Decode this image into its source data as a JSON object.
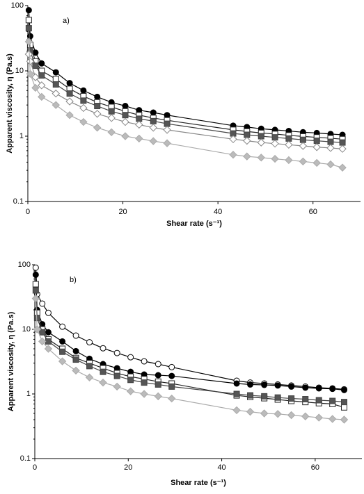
{
  "chart_data": [
    {
      "type": "line",
      "annotation": "a)",
      "xlabel": "Shear rate (s⁻¹)",
      "ylabel": "Apparent viscosity, η (Pa.s)",
      "log_y": true,
      "xlim": [
        0,
        70
      ],
      "ylim": [
        0.1,
        100
      ],
      "xticks": [
        0,
        20,
        40,
        60
      ],
      "yticks": [
        0.1,
        1,
        10,
        100
      ],
      "x": [
        0.2,
        0.5,
        1.6,
        2.9,
        5.9,
        8.8,
        11.7,
        14.6,
        17.6,
        20.5,
        23.4,
        26.4,
        29.3,
        43.2,
        46.1,
        49.1,
        52,
        54.9,
        57.9,
        60.8,
        63.7,
        66.2
      ],
      "series": [
        {
          "color": "#000000",
          "marker": "circle",
          "marker_fill": "#000000",
          "values": [
            85,
            34,
            19,
            13,
            9.5,
            6.5,
            5,
            4,
            3.3,
            2.9,
            2.5,
            2.3,
            2.1,
            1.45,
            1.38,
            1.3,
            1.25,
            1.2,
            1.15,
            1.12,
            1.08,
            1.05
          ]
        },
        {
          "color": "#222222",
          "marker": "square",
          "marker_fill": "#ffffff",
          "values": [
            60,
            25,
            14,
            10,
            7.5,
            5.3,
            4.1,
            3.3,
            2.8,
            2.4,
            2.1,
            1.9,
            1.75,
            1.25,
            1.18,
            1.12,
            1.08,
            1.03,
            0.99,
            0.96,
            0.93,
            0.9
          ]
        },
        {
          "color": "#444444",
          "marker": "square",
          "marker_fill": "#555555",
          "values": [
            45,
            20,
            12,
            8.5,
            6.2,
            4.5,
            3.5,
            2.9,
            2.4,
            2.1,
            1.85,
            1.7,
            1.55,
            1.1,
            1.05,
            1.0,
            0.96,
            0.92,
            0.88,
            0.85,
            0.82,
            0.8
          ]
        },
        {
          "color": "#888888",
          "marker": "diamond",
          "marker_fill": "#ffffff",
          "values": [
            18,
            14,
            8,
            6,
            4.5,
            3.4,
            2.7,
            2.2,
            1.9,
            1.65,
            1.5,
            1.35,
            1.25,
            0.9,
            0.85,
            0.8,
            0.77,
            0.74,
            0.71,
            0.68,
            0.66,
            0.64
          ]
        },
        {
          "color": "#aaaaaa",
          "marker": "diamond",
          "marker_fill": "#bbbbbb",
          "values": [
            28,
            9,
            5.5,
            4,
            3,
            2.1,
            1.65,
            1.35,
            1.15,
            1.0,
            0.92,
            0.84,
            0.78,
            0.52,
            0.49,
            0.47,
            0.45,
            0.43,
            0.41,
            0.39,
            0.37,
            0.33
          ]
        }
      ]
    },
    {
      "type": "line",
      "annotation": "b)",
      "xlabel": "Shear rate (s⁻¹)",
      "ylabel": "Apparent viscosity, η (Pa.s)",
      "log_y": true,
      "xlim": [
        0,
        70
      ],
      "ylim": [
        0.1,
        100
      ],
      "xticks": [
        0,
        20,
        40,
        60
      ],
      "yticks": [
        0.1,
        1,
        10,
        100
      ],
      "x": [
        0.2,
        0.5,
        1.6,
        2.9,
        5.9,
        8.8,
        11.7,
        14.6,
        17.6,
        20.5,
        23.4,
        26.4,
        29.3,
        43.2,
        46.1,
        49.1,
        52,
        54.9,
        57.9,
        60.8,
        63.7,
        66.2
      ],
      "series": [
        {
          "color": "#000000",
          "marker": "circle",
          "marker_fill": "#ffffff",
          "values": [
            90,
            35,
            25,
            18,
            11,
            8,
            6.3,
            5.1,
            4.3,
            3.7,
            3.2,
            2.9,
            2.6,
            1.6,
            1.5,
            1.45,
            1.4,
            1.35,
            1.3,
            1.25,
            1.22,
            1.18
          ]
        },
        {
          "color": "#000000",
          "marker": "circle",
          "marker_fill": "#000000",
          "values": [
            70,
            20,
            12,
            9,
            6.5,
            4.6,
            3.5,
            2.9,
            2.5,
            2.2,
            2.0,
            1.95,
            1.9,
            1.45,
            1.4,
            1.38,
            1.35,
            1.3,
            1.25,
            1.22,
            1.2,
            1.15
          ]
        },
        {
          "color": "#222222",
          "marker": "square",
          "marker_fill": "#ffffff",
          "values": [
            50,
            18,
            10,
            7,
            5,
            3.6,
            3,
            2.5,
            2.1,
            1.85,
            1.7,
            1.55,
            1.45,
            0.95,
            0.9,
            0.86,
            0.82,
            0.78,
            0.75,
            0.72,
            0.7,
            0.62
          ]
        },
        {
          "color": "#444444",
          "marker": "square",
          "marker_fill": "#555555",
          "values": [
            40,
            15,
            9,
            6.5,
            4.5,
            3.4,
            2.7,
            2.2,
            1.9,
            1.65,
            1.5,
            1.4,
            1.3,
            1.0,
            0.95,
            0.92,
            0.88,
            0.85,
            0.83,
            0.8,
            0.78,
            0.75
          ]
        },
        {
          "color": "#aaaaaa",
          "marker": "diamond",
          "marker_fill": "#bbbbbb",
          "values": [
            30,
            10,
            6.5,
            5,
            3.2,
            2.3,
            1.8,
            1.5,
            1.3,
            1.1,
            1.0,
            0.92,
            0.85,
            0.56,
            0.53,
            0.5,
            0.49,
            0.47,
            0.45,
            0.43,
            0.41,
            0.4
          ]
        }
      ]
    }
  ]
}
